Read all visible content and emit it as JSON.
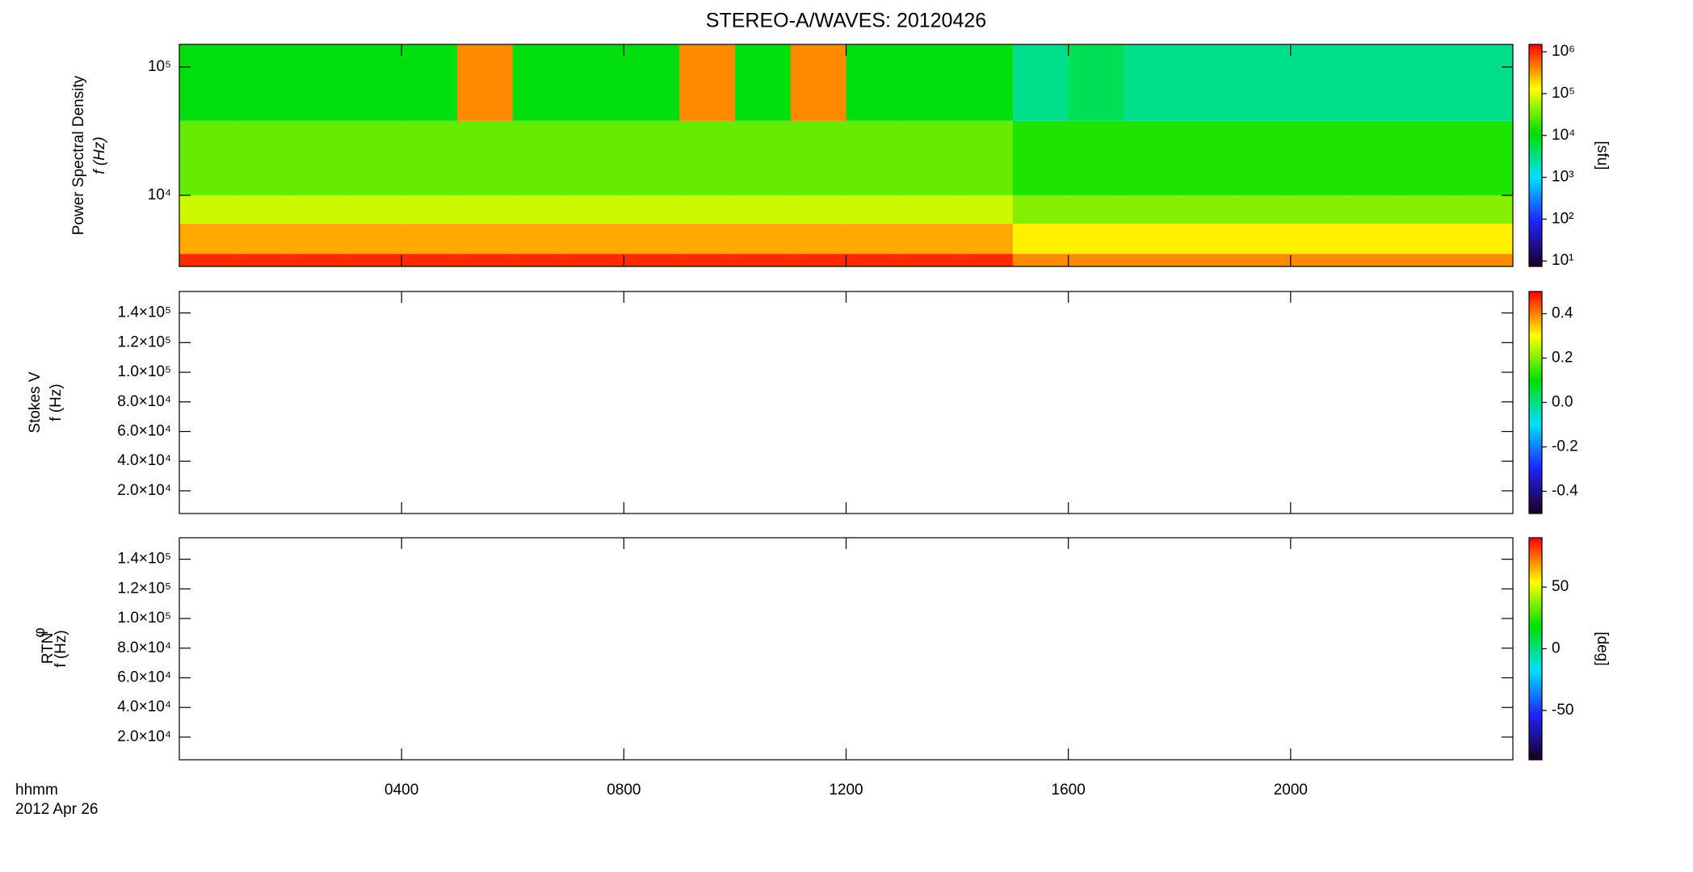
{
  "chart_data": [
    {
      "type": "heatmap",
      "title": "STEREO-A/WAVES: 20120426",
      "ylabel": [
        "Power Spectral Density",
        "f (Hz)"
      ],
      "ylim": [
        2790,
        150000
      ],
      "ylog": true,
      "yticks": [
        {
          "value": 10000,
          "label": "10⁴"
        },
        {
          "value": 100000,
          "label": "10⁵"
        }
      ],
      "time_bins": [
        0,
        1,
        2,
        3,
        4,
        5,
        6,
        7,
        8,
        9,
        10,
        11,
        12,
        13,
        14,
        15,
        16,
        17,
        18,
        19,
        20,
        21,
        22,
        23,
        24
      ],
      "freq_bins": [
        2790,
        3500,
        6000,
        10000,
        38000,
        150000
      ],
      "values": [
        [
          1000000,
          1000000,
          1000000,
          1000000,
          1000000,
          1000000,
          1000000,
          1000000,
          1000000,
          1000000,
          1000000,
          1000000,
          1000000,
          1000000,
          1000000,
          400000,
          400000,
          400000,
          400000,
          400000,
          400000,
          400000,
          400000,
          400000
        ],
        [
          300000,
          300000,
          300000,
          300000,
          300000,
          300000,
          300000,
          300000,
          300000,
          300000,
          300000,
          300000,
          300000,
          300000,
          300000,
          150000,
          150000,
          150000,
          150000,
          150000,
          150000,
          150000,
          150000,
          150000
        ],
        [
          80000,
          80000,
          80000,
          80000,
          80000,
          80000,
          80000,
          80000,
          80000,
          80000,
          80000,
          80000,
          80000,
          80000,
          80000,
          40000,
          40000,
          40000,
          40000,
          40000,
          40000,
          40000,
          40000,
          40000
        ],
        [
          30000,
          30000,
          30000,
          30000,
          30000,
          30000,
          30000,
          30000,
          30000,
          30000,
          30000,
          30000,
          30000,
          30000,
          30000,
          15000,
          15000,
          15000,
          15000,
          15000,
          15000,
          15000,
          15000,
          15000
        ],
        [
          10000,
          10000,
          10000,
          10000,
          10000,
          400000,
          10000,
          10000,
          10000,
          400000,
          10000,
          400000,
          10000,
          10000,
          10000,
          3000,
          5000,
          3000,
          3000,
          3000,
          3000,
          3000,
          3000,
          3000
        ]
      ],
      "clim": [
        7.4,
        1500000
      ],
      "clog": true,
      "cticks": [
        {
          "value": 10,
          "label": "10¹"
        },
        {
          "value": 100,
          "label": "10²"
        },
        {
          "value": 1000,
          "label": "10³"
        },
        {
          "value": 10000,
          "label": "10⁴"
        },
        {
          "value": 100000,
          "label": "10⁵"
        },
        {
          "value": 1000000,
          "label": "10⁶"
        }
      ],
      "clabel": "[sfu]",
      "colorscale": [
        "#1a0020",
        "#2020ff",
        "#00e0ff",
        "#00e000",
        "#ffff00",
        "#ff0000"
      ]
    },
    {
      "type": "heatmap",
      "ylabel": [
        "Stokes V",
        "f (Hz)"
      ],
      "ylim": [
        4700,
        154500
      ],
      "yticks": [
        {
          "value": 20000,
          "label": "2.0×10⁴"
        },
        {
          "value": 40000,
          "label": "4.0×10⁴"
        },
        {
          "value": 60000,
          "label": "6.0×10⁴"
        },
        {
          "value": 80000,
          "label": "8.0×10⁴"
        },
        {
          "value": 100000,
          "label": "1.0×10⁵"
        },
        {
          "value": 120000,
          "label": "1.2×10⁵"
        },
        {
          "value": 140000,
          "label": "1.4×10⁵"
        }
      ],
      "clim": [
        -0.5,
        0.5
      ],
      "cticks": [
        -0.4,
        -0.2,
        {
          "value": 0,
          "label": "0.0"
        },
        0.2,
        0.4
      ],
      "colorscale": [
        "#1a0020",
        "#2020ff",
        "#00e0ff",
        "#00e000",
        "#ffff00",
        "#ff0000"
      ]
    },
    {
      "type": "heatmap",
      "ylabel": [
        "φ",
        "f (Hz)"
      ],
      "ylabel_subscript": "RTN",
      "ylim": [
        4700,
        154500
      ],
      "yticks": [
        {
          "value": 20000,
          "label": "2.0×10⁴"
        },
        {
          "value": 40000,
          "label": "4.0×10⁴"
        },
        {
          "value": 60000,
          "label": "6.0×10⁴"
        },
        {
          "value": 80000,
          "label": "8.0×10⁴"
        },
        {
          "value": 100000,
          "label": "1.0×10⁵"
        },
        {
          "value": 120000,
          "label": "1.2×10⁵"
        },
        {
          "value": 140000,
          "label": "1.4×10⁵"
        }
      ],
      "clim": [
        -90,
        90
      ],
      "cticks": [
        -50,
        0,
        50
      ],
      "clabel": "[deg]",
      "xlim": [
        0,
        24
      ],
      "xticks": [
        {
          "value": 4,
          "label": "0400"
        },
        {
          "value": 8,
          "label": "0800"
        },
        {
          "value": 12,
          "label": "1200"
        },
        {
          "value": 16,
          "label": "1600"
        },
        {
          "value": 20,
          "label": "2000"
        }
      ],
      "xlabel": [
        "hhmm",
        "2012 Apr 26"
      ],
      "colorscale": [
        "#1a0020",
        "#2020ff",
        "#00e0ff",
        "#00e000",
        "#ffff00",
        "#ff0000"
      ]
    }
  ]
}
